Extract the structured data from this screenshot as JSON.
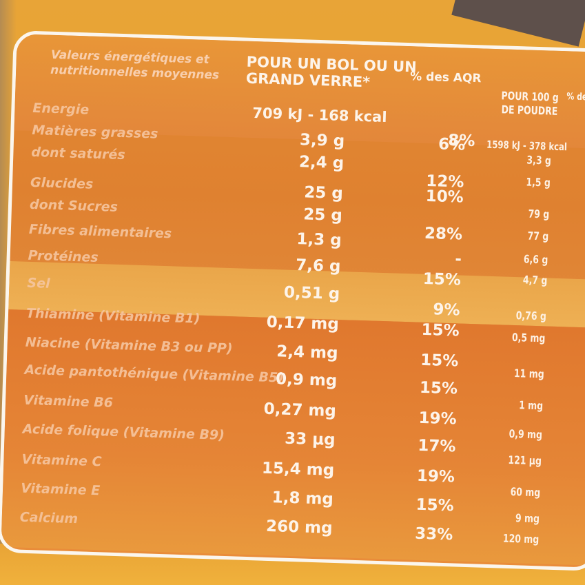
{
  "header": {
    "label": "Valeurs énergétiques et nutritionnelles moyennes",
    "col_serving": "POUR UN BOL OU UN GRAND VERRE*",
    "col_rda": "% des AQR",
    "col_100g": "POUR 100 g DE POUDRE",
    "col_rda_100g": "% de"
  },
  "energy": {
    "label": "Energie",
    "serving": "709 kJ - 168 kcal",
    "rda": "8%",
    "per_100g": "1598 kJ - 378 kcal"
  },
  "rows": [
    {
      "label": "Matières grasses",
      "serving": "3,9 g",
      "rda": "6%",
      "per_100g": "3,3 g"
    },
    {
      "label": "dont saturés",
      "serving": "2,4 g",
      "rda": "12%",
      "per_100g": "1,5 g"
    },
    {
      "label": "Glucides",
      "serving": "25 g",
      "rda": "10%",
      "per_100g": "79 g"
    },
    {
      "label": "dont Sucres",
      "serving": "25 g",
      "rda": "28%",
      "per_100g": "77 g"
    },
    {
      "label": "Fibres alimentaires",
      "serving": "1,3 g",
      "rda": "-",
      "per_100g": "6,6 g"
    },
    {
      "label": "Protéines",
      "serving": "7,6 g",
      "rda": "15%",
      "per_100g": "4,7 g"
    },
    {
      "label": "Sel",
      "serving": "0,51 g",
      "rda": "9%",
      "per_100g": "0,76 g"
    },
    {
      "label": "Thiamine (Vitamine B1)",
      "serving": "0,17 mg",
      "rda": "15%",
      "per_100g": "0,5 mg"
    },
    {
      "label": "Niacine (Vitamine B3 ou PP)",
      "serving": "2,4 mg",
      "rda": "15%",
      "per_100g": "11 mg"
    },
    {
      "label": "Acide pantothénique (Vitamine B5)",
      "serving": "0,9 mg",
      "rda": "15%",
      "per_100g": "1 mg"
    },
    {
      "label": "Vitamine B6",
      "serving": "0,27 mg",
      "rda": "19%",
      "per_100g": "0,9 mg"
    },
    {
      "label": "Acide folique (Vitamine B9)",
      "serving": "33 µg",
      "rda": "17%",
      "per_100g": "121 µg"
    },
    {
      "label": "Vitamine C",
      "serving": "15,4 mg",
      "rda": "19%",
      "per_100g": "60 mg"
    },
    {
      "label": "Vitamine E",
      "serving": "1,8 mg",
      "rda": "15%",
      "per_100g": "9 mg"
    },
    {
      "label": "Calcium",
      "serving": "260 mg",
      "rda": "33%",
      "per_100g": "120 mg"
    }
  ]
}
